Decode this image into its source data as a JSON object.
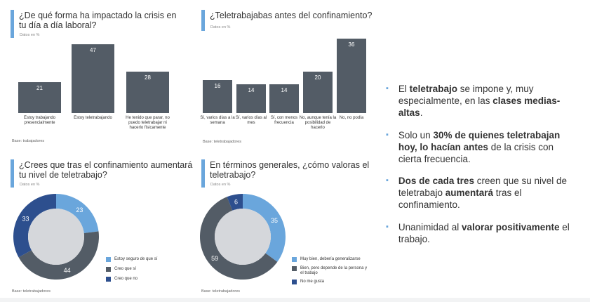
{
  "chart_data": [
    {
      "type": "bar",
      "title": "¿De qué forma ha impactado la crisis en tu día a día laboral?",
      "subtitle": "Datos en %",
      "categories": [
        "Estoy trabajando presencialmente",
        "Estoy teletrabajando",
        "He tenido que parar, no puedo teletrabajar ni hacerlo físicamente"
      ],
      "values": [
        21,
        47,
        28
      ],
      "base": "Base: trabajadores",
      "color": "#535c66"
    },
    {
      "type": "bar",
      "title": "¿Teletrabajabas antes del confinamiento?",
      "subtitle": "Datos en %",
      "categories": [
        "Sí, varios días a la semana",
        "Sí, varios días al mes",
        "Sí, con menos frecuencia",
        "No, aunque tenía la posibilidad de hacerlo",
        "No, no podía"
      ],
      "values": [
        16,
        14,
        14,
        20,
        36
      ],
      "base": "Base: teletrabajadores",
      "color": "#535c66"
    },
    {
      "type": "pie",
      "title": "¿Crees que tras el confinamiento aumentará tu nivel de teletrabajo?",
      "subtitle": "Datos en %",
      "categories": [
        "Estoy seguro de que sí",
        "Creo que sí",
        "Creo que no"
      ],
      "values": [
        23,
        44,
        33
      ],
      "colors": [
        "#6aa6dc",
        "#535c66",
        "#2d4f8e"
      ],
      "base": "Base: teletrabajadores"
    },
    {
      "type": "pie",
      "title": "En términos generales, ¿cómo valoras el teletrabajo?",
      "subtitle": "Datos en %",
      "categories": [
        "Muy bien, debería generalizarse",
        "Bien, pero depende de la persona y el trabajo",
        "No me gusta"
      ],
      "values": [
        35,
        59,
        6
      ],
      "colors": [
        "#6aa6dc",
        "#535c66",
        "#2d4f8e"
      ],
      "base": "Base: teletrabajadores"
    }
  ],
  "bullets": [
    [
      {
        "t": "El "
      },
      {
        "t": "teletrabajo",
        "b": true
      },
      {
        "t": " se impone y, muy especialmente, en las "
      },
      {
        "t": "clases medias-altas",
        "b": true
      },
      {
        "t": "."
      }
    ],
    [
      {
        "t": "Solo un "
      },
      {
        "t": "30% de quienes teletrabajan hoy, lo hacían antes",
        "b": true
      },
      {
        "t": " de la crisis con cierta frecuencia."
      }
    ],
    [
      {
        "t": "Dos de cada tres",
        "b": true
      },
      {
        "t": " creen que su nivel de teletrabajo "
      },
      {
        "t": "aumentará",
        "b": true
      },
      {
        "t": " tras el confinamiento."
      }
    ],
    [
      {
        "t": "Unanimidad al "
      },
      {
        "t": "valorar positivamente",
        "b": true
      },
      {
        "t": " el trabajo."
      }
    ]
  ],
  "accent_color": "#6aa6dc"
}
